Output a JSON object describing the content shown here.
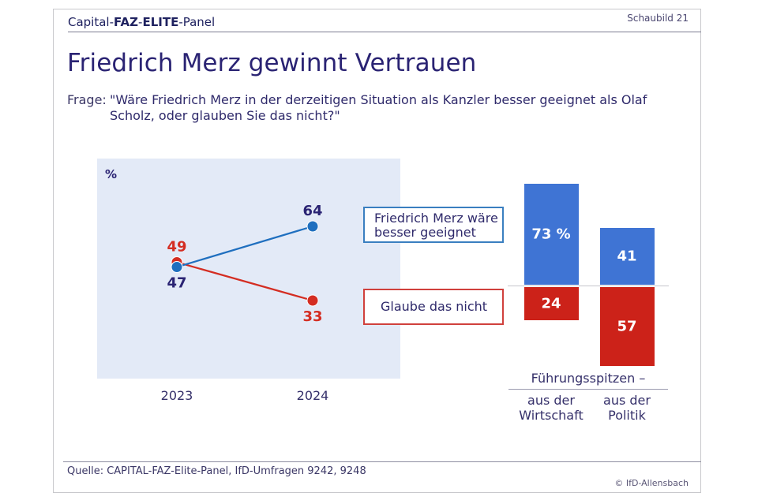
{
  "header": {
    "brand_parts": [
      {
        "text": "Capital-",
        "bold": false
      },
      {
        "text": "FAZ",
        "bold": true
      },
      {
        "text": "-",
        "bold": false
      },
      {
        "text": "ELITE",
        "bold": true
      },
      {
        "text": "-Panel",
        "bold": false
      }
    ],
    "figure_number": "Schaubild 21"
  },
  "title": "Friedrich Merz gewinnt Vertrauen",
  "question": {
    "label": "Frage:",
    "text": "\"Wäre Friedrich Merz in der derzeitigen Situation als Kanzler besser geeignet als Olaf Scholz, oder glauben Sie das nicht?\""
  },
  "colors": {
    "blue": "#1f6fbf",
    "red": "#d42d22",
    "bar_blue": "#3f74d4",
    "bar_red": "#cc2219",
    "panel_bg": "#e3eaf7",
    "text_navy": "#2a2373"
  },
  "chart_data": [
    {
      "type": "line",
      "title": "",
      "unit_label": "%",
      "x": [
        "2023",
        "2024"
      ],
      "series": [
        {
          "name": "Friedrich Merz wäre besser geeignet",
          "color": "blue",
          "values": [
            47,
            64
          ]
        },
        {
          "name": "Glaube das nicht",
          "color": "red",
          "values": [
            49,
            33
          ]
        }
      ],
      "ylim": [
        20,
        80
      ],
      "grid": false,
      "legend_placement": "right"
    },
    {
      "type": "bar",
      "stacked": "diverging",
      "group_title": "Führungsspitzen –",
      "categories": [
        "aus der\nWirtschaft",
        "aus der\nPolitik"
      ],
      "category_lines": [
        [
          "aus der",
          "Wirtschaft"
        ],
        [
          "aus der",
          "Politik"
        ]
      ],
      "series": [
        {
          "name": "Friedrich Merz wäre besser geeignet",
          "color": "bar_blue",
          "values": [
            73,
            41
          ],
          "labels": [
            "73 %",
            "41"
          ],
          "direction": "up"
        },
        {
          "name": "Glaube das nicht",
          "color": "bar_red",
          "values": [
            24,
            57
          ],
          "labels": [
            "24",
            "57"
          ],
          "direction": "down"
        }
      ]
    }
  ],
  "footer": {
    "source": "Quelle: CAPITAL-FAZ-Elite-Panel, IfD-Umfragen 9242, 9248",
    "copyright": "© IfD-Allensbach"
  }
}
